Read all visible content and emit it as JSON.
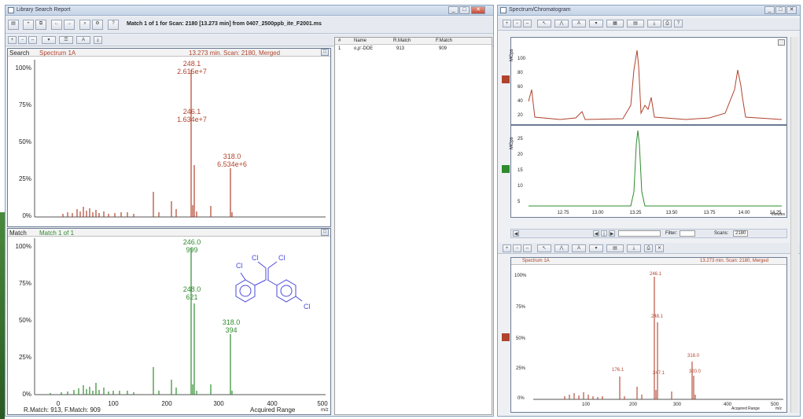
{
  "left_window": {
    "title": "Library Search Report",
    "buttons": [
      "_",
      "□",
      "✕"
    ],
    "toolbar2_text": "Match 1 of 1 for Scan: 2180 [13.273 min] from 0407_2500ppb_ite_F2001.ms",
    "search_panel": {
      "label": "Search",
      "spectrum_name": "Spectrum 1A",
      "scan_info": "13.273 min. Scan: 2180, Merged",
      "y_ticks": [
        "100%",
        "75%",
        "50%",
        "25%",
        "0%"
      ],
      "peaks": [
        {
          "label": "248.1",
          "sub": "2.615e+7"
        },
        {
          "label": "246.1",
          "sub": "1.634e+7"
        },
        {
          "label": "318.0",
          "sub": "6.534e+6"
        }
      ]
    },
    "match_panel": {
      "label": "Match",
      "match_name": "Match 1 of 1",
      "y_ticks": [
        "100%",
        "75%",
        "50%",
        "25%",
        "0%"
      ],
      "x_ticks": [
        "0",
        "100",
        "200",
        "300",
        "400",
        "500"
      ],
      "peaks": [
        {
          "label": "246.0",
          "sub": "999"
        },
        {
          "label": "248.0",
          "sub": "621"
        },
        {
          "label": "318.0",
          "sub": "394"
        }
      ],
      "structure_labels": [
        "Cl",
        "Cl",
        "Cl",
        "Cl"
      ],
      "footer_left": "R.Match: 913, F.Match: 909",
      "footer_right": "Acquired Range",
      "footer_unit": "m/z"
    },
    "results_table": {
      "headers": [
        "#",
        "Name",
        "R.Match",
        "F.Match"
      ],
      "rows": [
        [
          "1",
          "o,p'-DDE",
          "913",
          "909"
        ]
      ]
    }
  },
  "right_window": {
    "title": "Spectrum/Chromatogram",
    "buttons": [
      "_",
      "□",
      "✕"
    ],
    "chrom_top_ylabel": "MCps",
    "chrom_top_ticks": [
      "100",
      "80",
      "60",
      "40",
      "20"
    ],
    "chrom_bottom_ylabel": "MCps",
    "chrom_bottom_ticks": [
      "25",
      "20",
      "15",
      "10",
      "5"
    ],
    "chrom_x_ticks": [
      "12.75",
      "13.00",
      "13.25",
      "13.50",
      "13.75",
      "14.00",
      "14.25"
    ],
    "chrom_x_unit": "minutes",
    "filter_label": "Filter:",
    "scan_label": "Scans:",
    "scan_value": "2180",
    "spectrum_panel": {
      "name": "Spectrum 1A",
      "info": "13.273 min. Scan: 2180, Merged",
      "y_ticks": [
        "100%",
        "75%",
        "50%",
        "25%",
        "0%"
      ],
      "x_ticks": [
        "100",
        "200",
        "300",
        "400",
        "500"
      ],
      "x_label": "Acquired Range",
      "x_unit": "m/z",
      "peaks": [
        {
          "label": "246.1"
        },
        {
          "label": "248.1"
        },
        {
          "label": "176.1"
        },
        {
          "label": "247.1"
        },
        {
          "label": "318.0"
        },
        {
          "label": "320.0"
        }
      ]
    }
  },
  "colors": {
    "red": "#b0432d",
    "green": "#2e8b2e",
    "structure": "#4a4adb"
  }
}
